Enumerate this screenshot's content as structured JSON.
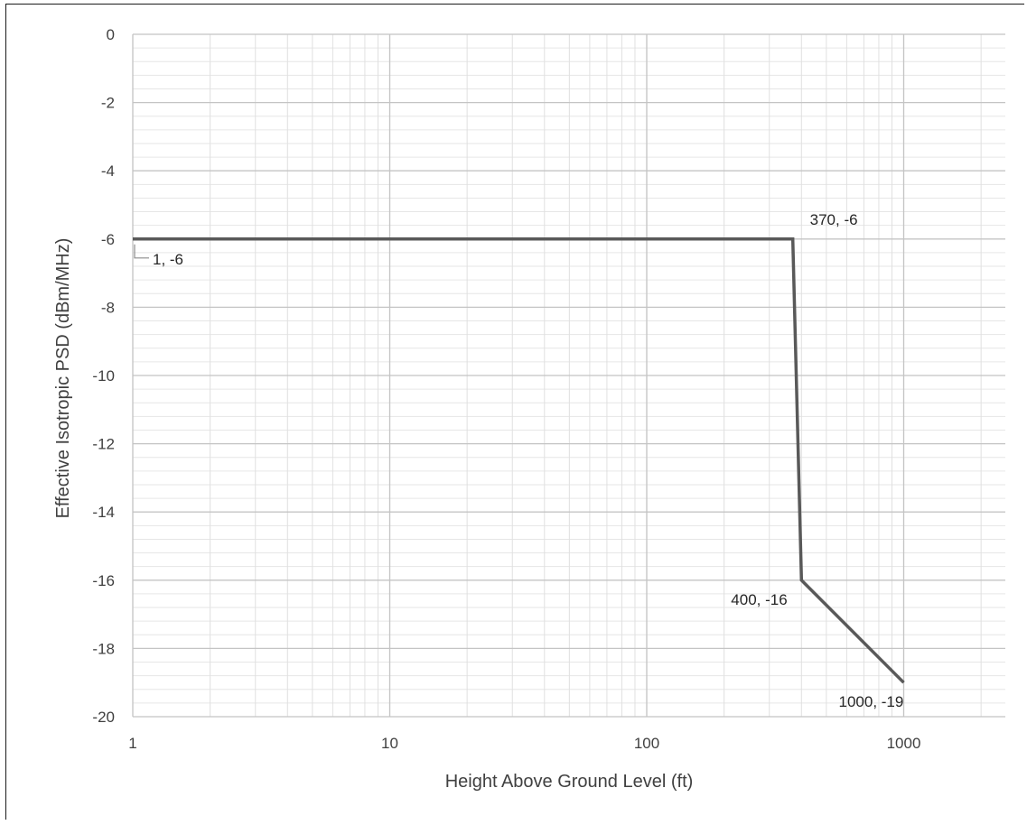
{
  "chart_data": {
    "type": "line",
    "title": "",
    "xlabel": "Height Above Ground Level (ft)",
    "ylabel": "Effective Isotropic PSD (dBm/MHz)",
    "x_scale": "log",
    "xlim": [
      1,
      2500
    ],
    "ylim": [
      -20,
      0
    ],
    "x_ticks": [
      {
        "value": 1,
        "label": "1"
      },
      {
        "value": 10,
        "label": "10"
      },
      {
        "value": 100,
        "label": "100"
      },
      {
        "value": 1000,
        "label": "1000"
      }
    ],
    "y_ticks": [
      {
        "value": 0,
        "label": "0"
      },
      {
        "value": -2,
        "label": "-2"
      },
      {
        "value": -4,
        "label": "-4"
      },
      {
        "value": -6,
        "label": "-6"
      },
      {
        "value": -8,
        "label": "-8"
      },
      {
        "value": -10,
        "label": "-10"
      },
      {
        "value": -12,
        "label": "-12"
      },
      {
        "value": -14,
        "label": "-14"
      },
      {
        "value": -16,
        "label": "-16"
      },
      {
        "value": -18,
        "label": "-18"
      },
      {
        "value": -20,
        "label": "-20"
      }
    ],
    "grid": {
      "major": true,
      "minor": true
    },
    "legend": "none",
    "series": [
      {
        "x": [
          1,
          370,
          400,
          1000
        ],
        "y": [
          -6,
          -6,
          -16,
          -19
        ],
        "color": "#595959"
      }
    ],
    "data_labels": [
      {
        "text": "1, -6",
        "x": 1,
        "y": -6,
        "anchor": "below-right",
        "leader": true
      },
      {
        "text": "370, -6",
        "x": 370,
        "y": -6,
        "anchor": "above-right",
        "leader": false
      },
      {
        "text": "400, -16",
        "x": 400,
        "y": -16,
        "anchor": "below-left",
        "leader": false
      },
      {
        "text": "1000, -19",
        "x": 1000,
        "y": -19,
        "anchor": "below",
        "leader": false
      }
    ]
  }
}
